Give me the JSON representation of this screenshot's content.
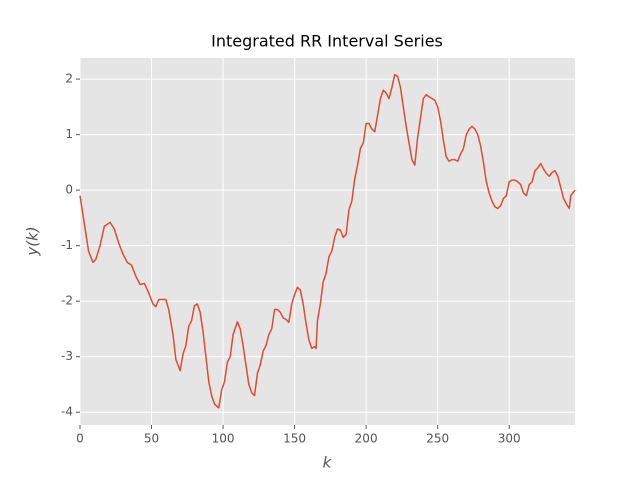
{
  "chart_data": {
    "type": "line",
    "title": "Integrated RR Interval Series",
    "xlabel": "k",
    "ylabel": "y(k)",
    "x": [
      0,
      3,
      6,
      9,
      11,
      14,
      17,
      20,
      21,
      24,
      27,
      30,
      33,
      36,
      39,
      42,
      45,
      48,
      51,
      53,
      55,
      58,
      60,
      62,
      65,
      67,
      70,
      72,
      74,
      76,
      78,
      80,
      82,
      84,
      86,
      88,
      90,
      92,
      94,
      96,
      97,
      99,
      101,
      103,
      105,
      107,
      109,
      110,
      112,
      114,
      116,
      118,
      120,
      122,
      124,
      126,
      128,
      130,
      132,
      134,
      136,
      138,
      140,
      142,
      144,
      146,
      148,
      150,
      152,
      154,
      156,
      158,
      160,
      162,
      164,
      165,
      166,
      168,
      170,
      172,
      174,
      176,
      178,
      180,
      182,
      184,
      186,
      188,
      190,
      192,
      194,
      196,
      198,
      200,
      202,
      204,
      206,
      208,
      210,
      212,
      214,
      216,
      218,
      220,
      222,
      224,
      226,
      228,
      230,
      232,
      234,
      236,
      238,
      240,
      242,
      244,
      246,
      248,
      250,
      252,
      254,
      256,
      258,
      260,
      262,
      264,
      266,
      268,
      270,
      272,
      274,
      276,
      278,
      280,
      282,
      284,
      286,
      288,
      290,
      292,
      294,
      296,
      298,
      300,
      302,
      304,
      306,
      308,
      310,
      312,
      314,
      316,
      318,
      320,
      322,
      324,
      326,
      328,
      330,
      332,
      334,
      336,
      338,
      340,
      342,
      343,
      346
    ],
    "values": [
      -0.1,
      -0.6,
      -1.1,
      -1.3,
      -1.25,
      -1.0,
      -0.65,
      -0.6,
      -0.58,
      -0.7,
      -0.95,
      -1.15,
      -1.3,
      -1.35,
      -1.55,
      -1.7,
      -1.68,
      -1.85,
      -2.05,
      -2.1,
      -1.97,
      -1.97,
      -1.97,
      -2.15,
      -2.6,
      -3.05,
      -3.25,
      -2.95,
      -2.8,
      -2.45,
      -2.35,
      -2.08,
      -2.05,
      -2.2,
      -2.55,
      -3.0,
      -3.45,
      -3.7,
      -3.85,
      -3.9,
      -3.92,
      -3.6,
      -3.45,
      -3.1,
      -3.0,
      -2.6,
      -2.45,
      -2.37,
      -2.5,
      -2.8,
      -3.15,
      -3.5,
      -3.65,
      -3.7,
      -3.3,
      -3.15,
      -2.9,
      -2.8,
      -2.6,
      -2.5,
      -2.15,
      -2.15,
      -2.2,
      -2.3,
      -2.33,
      -2.38,
      -2.05,
      -1.88,
      -1.75,
      -1.8,
      -2.05,
      -2.4,
      -2.7,
      -2.85,
      -2.82,
      -2.85,
      -2.35,
      -2.05,
      -1.65,
      -1.5,
      -1.2,
      -1.1,
      -0.85,
      -0.7,
      -0.72,
      -0.85,
      -0.8,
      -0.35,
      -0.2,
      0.2,
      0.45,
      0.75,
      0.85,
      1.2,
      1.2,
      1.1,
      1.05,
      1.35,
      1.65,
      1.8,
      1.75,
      1.65,
      1.85,
      2.08,
      2.05,
      1.85,
      1.5,
      1.15,
      0.85,
      0.55,
      0.45,
      0.95,
      1.3,
      1.65,
      1.72,
      1.68,
      1.65,
      1.62,
      1.5,
      1.25,
      0.9,
      0.6,
      0.52,
      0.55,
      0.55,
      0.52,
      0.65,
      0.75,
      1.0,
      1.1,
      1.15,
      1.1,
      1.0,
      0.8,
      0.5,
      0.15,
      -0.05,
      -0.2,
      -0.3,
      -0.33,
      -0.28,
      -0.15,
      -0.1,
      0.15,
      0.18,
      0.18,
      0.15,
      0.1,
      -0.05,
      -0.1,
      0.1,
      0.15,
      0.35,
      0.4,
      0.48,
      0.38,
      0.3,
      0.25,
      0.32,
      0.35,
      0.25,
      0.05,
      -0.15,
      -0.25,
      -0.33,
      -0.1,
      0.0
    ],
    "color": "#e24a33",
    "xlim": [
      0,
      346
    ],
    "ylim": [
      -4.23,
      2.38
    ],
    "xticks": [
      0,
      50,
      100,
      150,
      200,
      250,
      300
    ],
    "yticks": [
      -4,
      -3,
      -2,
      -1,
      0,
      1,
      2
    ],
    "grid": true
  }
}
